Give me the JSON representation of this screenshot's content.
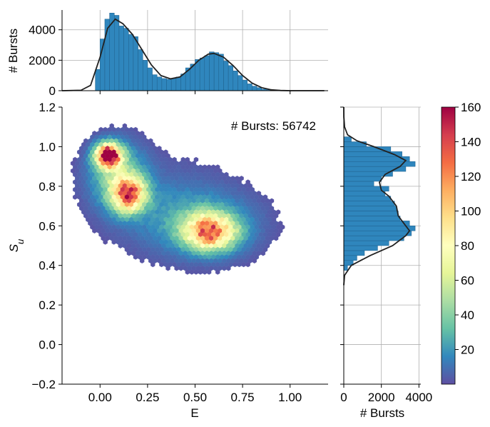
{
  "chart_data": [
    {
      "type": "heatmap",
      "subtype": "hexbin",
      "annotation": "# Bursts: 56742",
      "xlabel": "E",
      "ylabel": "S_u",
      "xlim": [
        -0.2,
        1.2
      ],
      "ylim": [
        -0.2,
        1.2
      ],
      "xticks": [
        "0.00",
        "0.25",
        "0.50",
        "0.75",
        "1.00"
      ],
      "yticks": [
        "−0.2",
        "0.0",
        "0.2",
        "0.4",
        "0.6",
        "0.8",
        "1.0",
        "1.2"
      ],
      "clusters": [
        {
          "center_E": 0.04,
          "center_S": 0.96,
          "peak_count": 160
        },
        {
          "center_E": 0.15,
          "center_S": 0.76,
          "peak_count": 140
        },
        {
          "center_E": 0.58,
          "center_S": 0.57,
          "peak_count": 125
        }
      ],
      "colormap": "Spectral_r"
    },
    {
      "type": "bar",
      "name": "top-marginal-E",
      "ylabel": "# Bursts",
      "yticks": [
        "0",
        "2000",
        "4000"
      ],
      "ylim": [
        0,
        5300
      ],
      "x_bin_width": 0.025,
      "x_bin_starts": [
        -0.025,
        0.0,
        0.025,
        0.05,
        0.075,
        0.1,
        0.125,
        0.15,
        0.175,
        0.2,
        0.225,
        0.25,
        0.275,
        0.3,
        0.325,
        0.35,
        0.375,
        0.4,
        0.425,
        0.45,
        0.475,
        0.5,
        0.525,
        0.55,
        0.575,
        0.6,
        0.625,
        0.65,
        0.675,
        0.7,
        0.725,
        0.75,
        0.775,
        0.8,
        0.825,
        0.85,
        0.875,
        0.9
      ],
      "values": [
        1400,
        3400,
        4700,
        5100,
        4950,
        4250,
        4100,
        3700,
        3550,
        2700,
        2000,
        1500,
        1050,
        900,
        800,
        750,
        800,
        900,
        1100,
        1500,
        1750,
        2050,
        2150,
        2300,
        2550,
        2500,
        2400,
        1950,
        1650,
        1300,
        1000,
        700,
        450,
        300,
        200,
        100,
        60,
        30
      ],
      "kde": [
        [
          -0.2,
          0
        ],
        [
          -0.1,
          30
        ],
        [
          -0.05,
          350
        ],
        [
          0.0,
          2200
        ],
        [
          0.04,
          4100
        ],
        [
          0.08,
          4700
        ],
        [
          0.12,
          4400
        ],
        [
          0.17,
          3700
        ],
        [
          0.22,
          2700
        ],
        [
          0.27,
          1700
        ],
        [
          0.32,
          1000
        ],
        [
          0.37,
          780
        ],
        [
          0.42,
          900
        ],
        [
          0.47,
          1400
        ],
        [
          0.52,
          2000
        ],
        [
          0.57,
          2400
        ],
        [
          0.6,
          2450
        ],
        [
          0.65,
          2200
        ],
        [
          0.7,
          1650
        ],
        [
          0.75,
          1000
        ],
        [
          0.8,
          500
        ],
        [
          0.85,
          200
        ],
        [
          0.9,
          60
        ],
        [
          0.95,
          15
        ],
        [
          1.0,
          0
        ],
        [
          1.18,
          0
        ]
      ]
    },
    {
      "type": "bar",
      "name": "right-marginal-S",
      "orientation": "horizontal",
      "xlabel": "# Bursts",
      "xticks": [
        "0",
        "2000",
        "4000"
      ],
      "xlim": [
        0,
        4100
      ],
      "y_bin_width": 0.025,
      "y_bin_starts": [
        0.375,
        0.4,
        0.425,
        0.45,
        0.475,
        0.5,
        0.525,
        0.55,
        0.575,
        0.6,
        0.625,
        0.65,
        0.675,
        0.7,
        0.725,
        0.75,
        0.775,
        0.8,
        0.825,
        0.85,
        0.875,
        0.9,
        0.925,
        0.95,
        0.975,
        1.0,
        1.025
      ],
      "values": [
        200,
        500,
        700,
        1100,
        1800,
        2400,
        3200,
        3600,
        3800,
        3500,
        3000,
        2900,
        2800,
        2700,
        2500,
        2200,
        2400,
        1600,
        2000,
        2600,
        3300,
        3800,
        3500,
        3100,
        2500,
        1200,
        400
      ],
      "kde": [
        [
          0.3,
          0
        ],
        [
          0.35,
          40
        ],
        [
          0.4,
          400
        ],
        [
          0.45,
          1400
        ],
        [
          0.5,
          2600
        ],
        [
          0.55,
          3300
        ],
        [
          0.575,
          3500
        ],
        [
          0.6,
          3300
        ],
        [
          0.65,
          2900
        ],
        [
          0.7,
          2800
        ],
        [
          0.75,
          2400
        ],
        [
          0.78,
          2000
        ],
        [
          0.82,
          1900
        ],
        [
          0.86,
          2200
        ],
        [
          0.9,
          3000
        ],
        [
          0.93,
          3300
        ],
        [
          0.96,
          2700
        ],
        [
          1.0,
          1600
        ],
        [
          1.03,
          700
        ],
        [
          1.06,
          200
        ],
        [
          1.1,
          40
        ],
        [
          1.15,
          5
        ],
        [
          1.2,
          0
        ]
      ]
    }
  ],
  "colorbar": {
    "ticks": [
      "20",
      "40",
      "60",
      "80",
      "100",
      "120",
      "140",
      "160"
    ],
    "range": [
      0,
      160
    ],
    "colors": [
      "#5e4fa2",
      "#3288bd",
      "#66c2a5",
      "#abdda4",
      "#e6f598",
      "#ffffbf",
      "#fee08b",
      "#fdae61",
      "#f46d43",
      "#d53e4f",
      "#9e0142"
    ]
  },
  "colors": {
    "bar_fill": "#2f86bd",
    "bar_edge": "#1f5f8b",
    "kde_line": "#222222"
  }
}
